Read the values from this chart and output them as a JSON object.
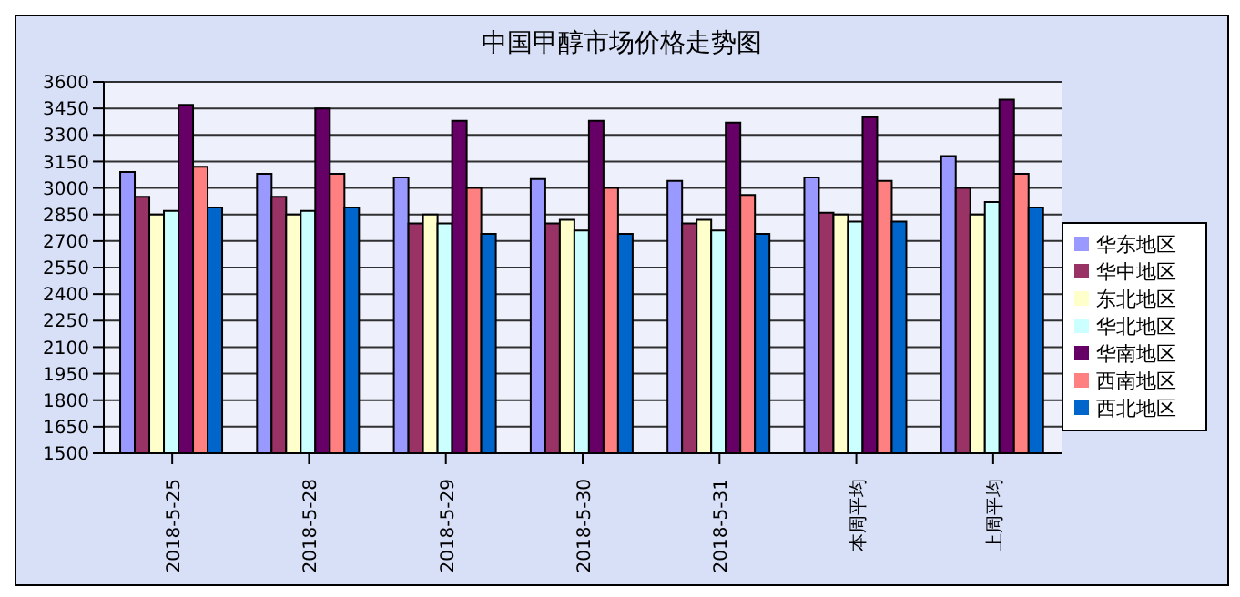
{
  "chart_data": {
    "type": "bar",
    "title": "中国甲醇市场价格走势图",
    "categories": [
      "2018-5-25",
      "2018-5-28",
      "2018-5-29",
      "2018-5-30",
      "2018-5-31",
      "本周平均",
      "上周平均"
    ],
    "series": [
      {
        "name": "华东地区",
        "color": "#9999ff",
        "values": [
          3090,
          3080,
          3060,
          3050,
          3040,
          3060,
          3180
        ]
      },
      {
        "name": "华中地区",
        "color": "#993366",
        "values": [
          2950,
          2950,
          2800,
          2800,
          2800,
          2860,
          3000
        ]
      },
      {
        "name": "东北地区",
        "color": "#ffffcc",
        "values": [
          2850,
          2850,
          2850,
          2820,
          2820,
          2850,
          2850
        ]
      },
      {
        "name": "华北地区",
        "color": "#ccffff",
        "values": [
          2870,
          2870,
          2800,
          2760,
          2760,
          2810,
          2920
        ]
      },
      {
        "name": "华南地区",
        "color": "#660066",
        "values": [
          3470,
          3450,
          3380,
          3380,
          3370,
          3400,
          3500
        ]
      },
      {
        "name": "西南地区",
        "color": "#ff8080",
        "values": [
          3120,
          3080,
          3000,
          3000,
          2960,
          3040,
          3080
        ]
      },
      {
        "name": "西北地区",
        "color": "#0066cc",
        "values": [
          2890,
          2890,
          2740,
          2740,
          2740,
          2810,
          2890
        ]
      }
    ],
    "ylim": [
      1500,
      3600
    ],
    "yticks": [
      1500,
      1650,
      1800,
      1950,
      2100,
      2250,
      2400,
      2550,
      2700,
      2850,
      3000,
      3150,
      3300,
      3450,
      3600
    ],
    "grid": "y",
    "legend": "right"
  }
}
